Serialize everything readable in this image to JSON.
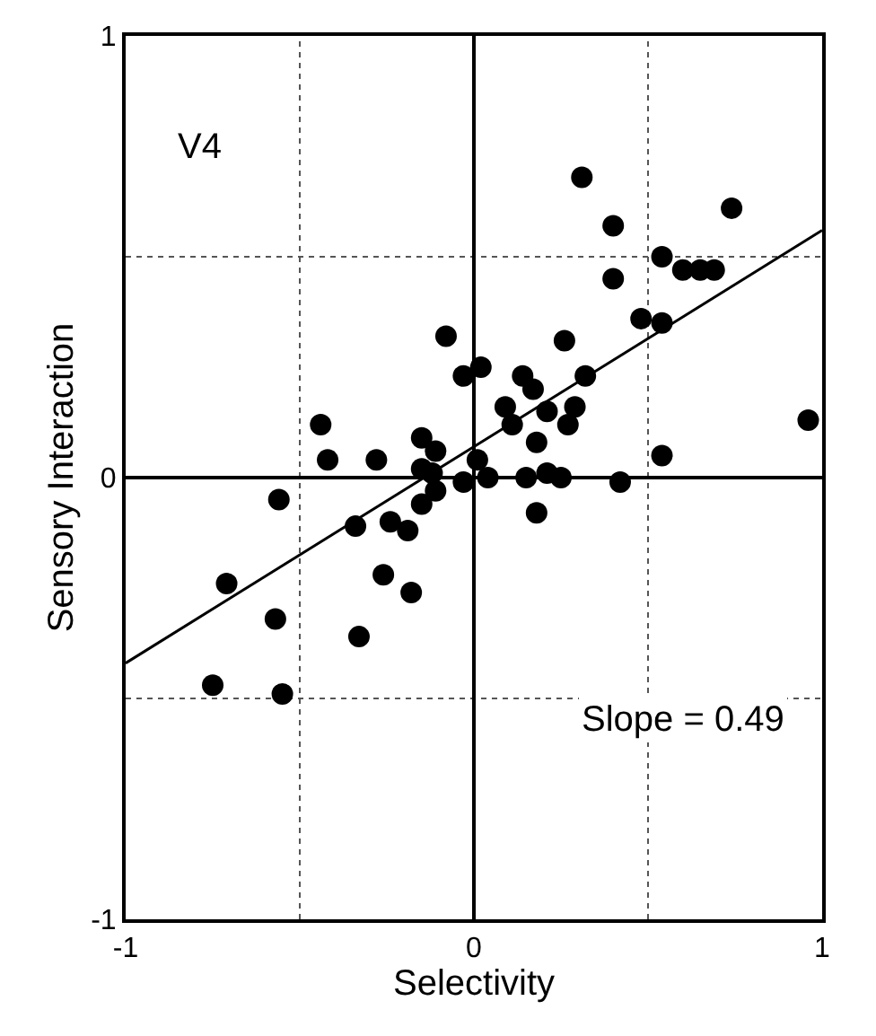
{
  "chart_data": {
    "type": "scatter",
    "xlabel": "Selectivity",
    "ylabel": "Sensory Interaction",
    "annotations": [
      "V4",
      "Slope = 0.49"
    ],
    "xlim": [
      -1,
      1
    ],
    "ylim": [
      -1,
      1
    ],
    "xticks": [
      -1,
      {
        "value": -0.5,
        "label": null
      },
      0,
      {
        "value": 0.5,
        "label": null
      },
      1
    ],
    "yticks": [
      -1,
      {
        "value": -0.5,
        "label": null
      },
      0,
      {
        "value": 0.5,
        "label": null
      },
      1
    ],
    "grid": true,
    "marker": "circle",
    "series": [
      {
        "color": "#000000",
        "x": [
          0.31,
          0.4,
          0.74,
          0.54,
          0.6,
          0.65,
          0.69,
          0.4,
          0.48,
          0.54,
          -0.08,
          0.26,
          -0.03,
          0.02,
          0.32,
          0.14,
          0.17,
          0.09,
          0.11,
          0.21,
          0.27,
          0.29,
          0.18,
          -0.44,
          -0.42,
          -0.28,
          -0.15,
          -0.11,
          -0.15,
          -0.12,
          -0.03,
          0.01,
          0.04,
          0.15,
          0.21,
          0.25,
          0.42,
          0.54,
          0.96,
          -0.56,
          0.18,
          -0.15,
          -0.11,
          -0.34,
          -0.24,
          -0.19,
          -0.71,
          -0.26,
          -0.18,
          -0.57,
          -0.33,
          -0.75,
          -0.55
        ],
        "values": [
          0.68,
          0.57,
          0.61,
          0.5,
          0.47,
          0.47,
          0.47,
          0.45,
          0.36,
          0.35,
          0.32,
          0.31,
          0.23,
          0.25,
          0.23,
          0.23,
          0.2,
          0.16,
          0.12,
          0.15,
          0.12,
          0.16,
          0.08,
          0.12,
          0.04,
          0.04,
          0.09,
          0.06,
          0.02,
          0.01,
          -0.01,
          0.04,
          0.0,
          0.0,
          0.01,
          0.0,
          -0.01,
          0.05,
          0.13,
          -0.05,
          -0.08,
          -0.06,
          -0.03,
          -0.11,
          -0.1,
          -0.12,
          -0.24,
          -0.22,
          -0.26,
          -0.32,
          -0.36,
          -0.47,
          -0.49
        ]
      },
      {
        "type": "line",
        "color": "#000000",
        "marker": "none",
        "x": [
          -1,
          1
        ],
        "values": [
          -0.42,
          0.56
        ]
      }
    ]
  }
}
